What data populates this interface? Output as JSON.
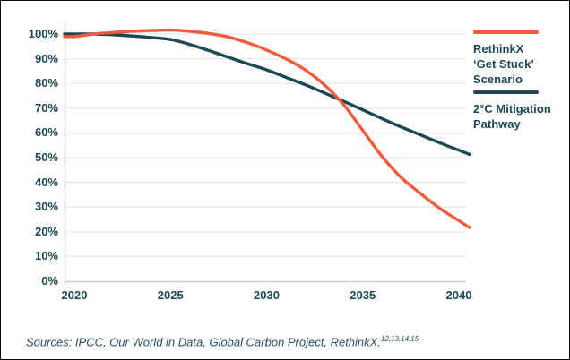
{
  "chart_data": {
    "type": "line",
    "title": "",
    "xlabel": "",
    "ylabel": "",
    "x": [
      2020,
      2021,
      2022,
      2023,
      2024,
      2025,
      2026,
      2027,
      2028,
      2029,
      2030,
      2031,
      2032,
      2033,
      2034,
      2035,
      2036,
      2037,
      2038,
      2039,
      2040
    ],
    "series": [
      {
        "name": "RethinkX 'Get Stuck' Scenario",
        "legend_label": "RethinkX\n‘Get Stuck’\nScenario",
        "color": "#F2593F",
        "values": [
          99,
          100,
          100.6,
          101.1,
          101.4,
          101.6,
          101.1,
          100.2,
          98.8,
          96.5,
          93.5,
          90,
          85.5,
          79.5,
          71.5,
          61,
          50.5,
          42,
          35.5,
          29.5,
          24.5
        ]
      },
      {
        "name": "2°C Mitigation Pathway",
        "legend_label": "2°C Mitigation\nPathway",
        "color": "#1C4854",
        "values": [
          100,
          100,
          99.7,
          99.2,
          98.6,
          97.8,
          95.8,
          93.3,
          90.6,
          88,
          85.5,
          82.5,
          79.5,
          76.2,
          72.8,
          69.3,
          65.8,
          62.4,
          59.2,
          56,
          53
        ]
      }
    ],
    "xticks": [
      2020,
      2025,
      2030,
      2035,
      2040
    ],
    "yticks": [
      0,
      10,
      20,
      30,
      40,
      50,
      60,
      70,
      80,
      90,
      100
    ],
    "ytick_suffix": "%",
    "ylim": [
      0,
      105
    ],
    "xlim": [
      2019.5,
      2040.5
    ],
    "grid": "horizontal",
    "legend_position": "right",
    "colors": {
      "grid": "#E4E9EC",
      "axis": "#C6CFD5",
      "tick_text": "#1B4854"
    }
  },
  "footer": {
    "text": "Sources: IPCC, Our World in Data, Global Carbon Project, RethinkX.",
    "superscript": "12,13,14,15"
  }
}
